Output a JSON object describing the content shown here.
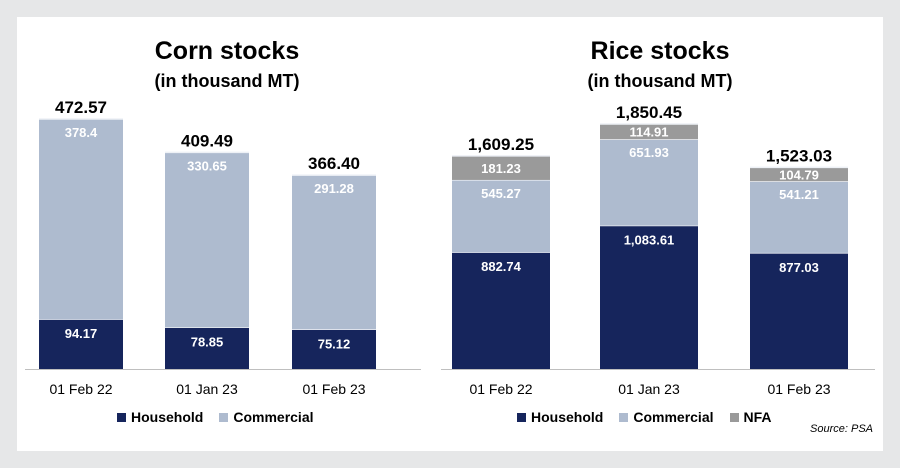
{
  "colors": {
    "household": "#16255c",
    "commercial": "#aebbcf",
    "nfa": "#9a9a9a"
  },
  "source": "Source: PSA",
  "chart_data": [
    {
      "type": "bar",
      "stacked": true,
      "title": "Corn stocks",
      "subtitle": "(in thousand MT)",
      "categories": [
        "01 Feb 22",
        "01 Jan 23",
        "01 Feb 23"
      ],
      "series": [
        {
          "name": "Household",
          "key": "household",
          "values": [
            94.17,
            78.85,
            75.12
          ],
          "labels": [
            "94.17",
            "78.85",
            "75.12"
          ]
        },
        {
          "name": "Commercial",
          "key": "commercial",
          "values": [
            378.4,
            330.65,
            291.28
          ],
          "labels": [
            "378.4",
            "330.65",
            "291.28"
          ]
        }
      ],
      "totals": [
        472.57,
        409.49,
        366.4
      ],
      "total_labels": [
        "472.57",
        "409.49",
        "366.40"
      ],
      "legend": [
        "Household",
        "Commercial"
      ],
      "grid": false
    },
    {
      "type": "bar",
      "stacked": true,
      "title": "Rice stocks",
      "subtitle": "(in thousand MT)",
      "categories": [
        "01 Feb 22",
        "01 Jan 23",
        "01 Feb 23"
      ],
      "series": [
        {
          "name": "Household",
          "key": "household",
          "values": [
            882.74,
            1083.61,
            877.03
          ],
          "labels": [
            "882.74",
            "1,083.61",
            "877.03"
          ]
        },
        {
          "name": "Commercial",
          "key": "commercial",
          "values": [
            545.27,
            651.93,
            541.21
          ],
          "labels": [
            "545.27",
            "651.93",
            "541.21"
          ]
        },
        {
          "name": "NFA",
          "key": "nfa",
          "values": [
            181.23,
            114.91,
            104.79
          ],
          "labels": [
            "181.23",
            "114.91",
            "104.79"
          ]
        }
      ],
      "totals": [
        1609.25,
        1850.45,
        1523.03
      ],
      "total_labels": [
        "1,609.25",
        "1,850.45",
        "1,523.03"
      ],
      "legend": [
        "Household",
        "Commercial",
        "NFA"
      ],
      "grid": false
    }
  ]
}
